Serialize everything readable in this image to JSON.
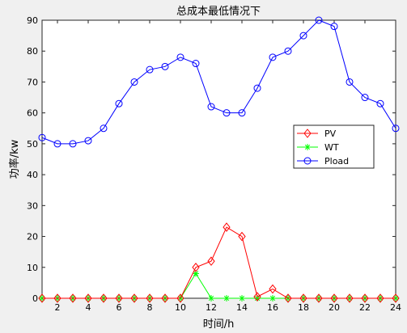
{
  "chart_data": {
    "type": "line",
    "title": "总成本最低情况下",
    "xlabel": "时间/h",
    "ylabel": "功率/kw",
    "xlim": [
      1,
      24
    ],
    "ylim": [
      0,
      90
    ],
    "xticks": [
      2,
      4,
      6,
      8,
      10,
      12,
      14,
      16,
      18,
      20,
      22,
      24
    ],
    "yticks": [
      0,
      10,
      20,
      30,
      40,
      50,
      60,
      70,
      80,
      90
    ],
    "grid": false,
    "legend_position": "right",
    "x": [
      1,
      2,
      3,
      4,
      5,
      6,
      7,
      8,
      9,
      10,
      11,
      12,
      13,
      14,
      15,
      16,
      17,
      18,
      19,
      20,
      21,
      22,
      23,
      24
    ],
    "series": [
      {
        "name": "PV",
        "color": "#ff0000",
        "marker": "diamond",
        "values": [
          0,
          0,
          0,
          0,
          0,
          0,
          0,
          0,
          0,
          0,
          10,
          12,
          23,
          20,
          0.5,
          3,
          0,
          0,
          0,
          0,
          0,
          0,
          0,
          0
        ]
      },
      {
        "name": "WT",
        "color": "#00ff00",
        "marker": "asterisk",
        "values": [
          0,
          0,
          0,
          0,
          0,
          0,
          0,
          0,
          0,
          0,
          8,
          0,
          0,
          0,
          0,
          0,
          0,
          0,
          0,
          0,
          0,
          0,
          0,
          0
        ]
      },
      {
        "name": "Pload",
        "color": "#0000ff",
        "marker": "circle",
        "values": [
          52,
          50,
          50,
          51,
          55,
          63,
          70,
          74,
          75,
          78,
          76,
          62,
          60,
          60,
          68,
          78,
          80,
          85,
          90,
          88,
          70,
          65,
          63,
          55
        ]
      }
    ]
  }
}
